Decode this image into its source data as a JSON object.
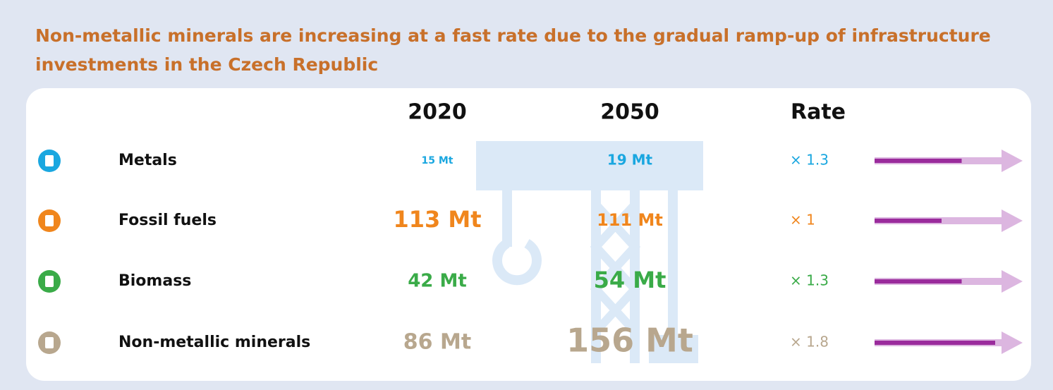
{
  "title": "Non-metallic minerals are increasing at a fast rate due to the gradual ramp-up of infrastructure investments in the Czech Republic",
  "table": {
    "headers": [
      "2020",
      "2050",
      "Rate"
    ],
    "rows": [
      {
        "label": "Metals",
        "v2020": "15 Mt",
        "v2050": "19 Mt",
        "rate": {
          "value": 1.3,
          "label": "× 1.3"
        }
      },
      {
        "label": "Fossil fuels",
        "v2020": "113 Mt",
        "v2050": "111 Mt",
        "rate": {
          "value": 1,
          "label": "× 1"
        }
      },
      {
        "label": "Biomass",
        "v2020": "42 Mt",
        "v2050": "54 Mt",
        "rate": {
          "value": 1.3,
          "label": "× 1.3"
        }
      },
      {
        "label": "Non-metallic minerals",
        "v2020": "86 Mt",
        "v2050": "156 Mt",
        "rate": {
          "value": 1.8,
          "label": "× 1.8"
        }
      }
    ]
  }
}
